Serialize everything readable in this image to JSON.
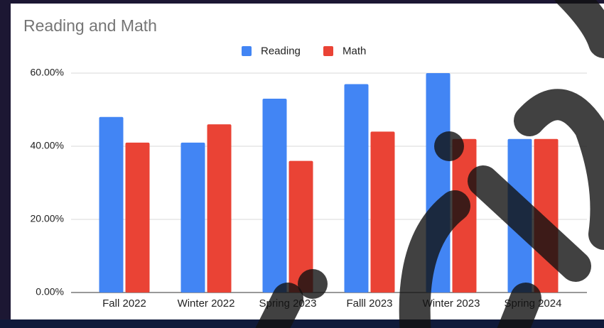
{
  "chart_data": {
    "type": "bar",
    "title": "Reading and Math",
    "categories": [
      "Fall 2022",
      "Winter 2022",
      "Spring 2023",
      "Falll 2023",
      "Winter 2023",
      "Spring 2024"
    ],
    "series": [
      {
        "name": "Reading",
        "color": "#4285f4",
        "values": [
          48,
          41,
          53,
          57,
          60,
          42
        ]
      },
      {
        "name": "Math",
        "color": "#ea4335",
        "values": [
          41,
          46,
          36,
          44,
          42,
          42
        ]
      }
    ],
    "ylim": [
      0,
      60
    ],
    "yticks": [
      {
        "value": 0,
        "label": "0.00%"
      },
      {
        "value": 20,
        "label": "20.00%"
      },
      {
        "value": 40,
        "label": "40.00%"
      },
      {
        "value": 60,
        "label": "60.00%"
      }
    ],
    "grid": true,
    "legend": "top"
  }
}
